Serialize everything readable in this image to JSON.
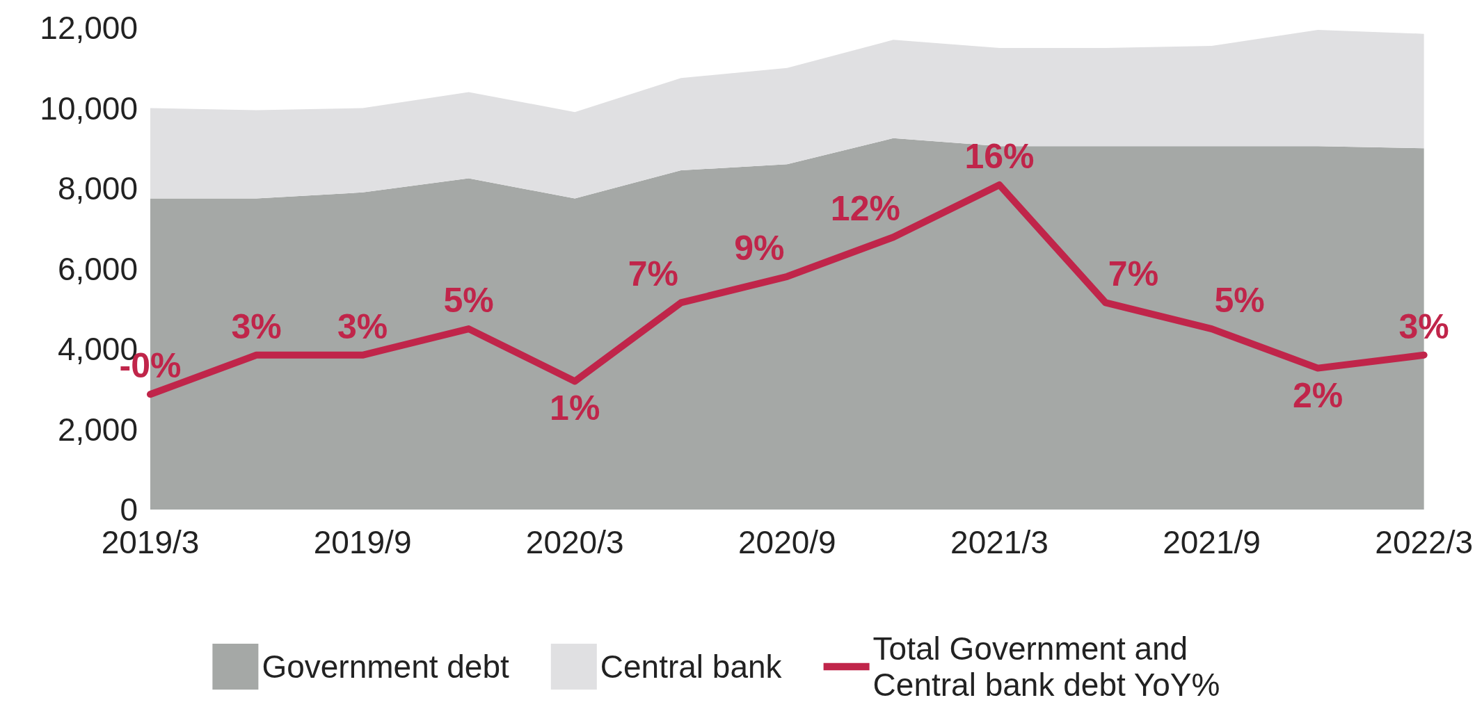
{
  "chart_data": {
    "type": "area",
    "stacked": true,
    "categories": [
      "2019/3",
      null,
      "2019/9",
      null,
      "2020/3",
      null,
      "2020/9",
      null,
      "2021/3",
      null,
      "2021/9",
      null,
      "2022/3"
    ],
    "series": [
      {
        "name": "Government debt",
        "color": "#a5a8a6",
        "values": [
          7750,
          7750,
          7900,
          8250,
          7750,
          8450,
          8600,
          9250,
          9050,
          9050,
          9050,
          9050,
          9000
        ]
      },
      {
        "name": "Central bank",
        "color": "#e0e0e2",
        "values": [
          2250,
          2200,
          2100,
          2150,
          2150,
          2300,
          2400,
          2450,
          2450,
          2450,
          2500,
          2900,
          2850
        ]
      },
      {
        "name": "Total Government and Central bank debt YoY%",
        "type": "line",
        "axis": "y2",
        "color": "#c0254a",
        "values": [
          0,
          3,
          3,
          5,
          1,
          7,
          9,
          12,
          16,
          7,
          5,
          2,
          3
        ],
        "value_labels": [
          "-0%",
          "3%",
          "3%",
          "5%",
          "1%",
          "7%",
          "9%",
          "12%",
          "16%",
          "7%",
          "5%",
          "2%",
          "3%"
        ]
      }
    ],
    "ylim": [
      0,
      12000
    ],
    "yticks": [
      0,
      {
        "value": 2000,
        "label": "2,000"
      },
      {
        "value": 4000,
        "label": "4,000"
      },
      {
        "value": 6000,
        "label": "6,000"
      },
      {
        "value": 8000,
        "label": "8,000"
      },
      {
        "value": 10000,
        "label": "10,000"
      },
      {
        "value": 12000,
        "label": "12,000"
      }
    ],
    "grid": false,
    "legend": "bottom",
    "marker": "none",
    "line_style": "solid"
  }
}
